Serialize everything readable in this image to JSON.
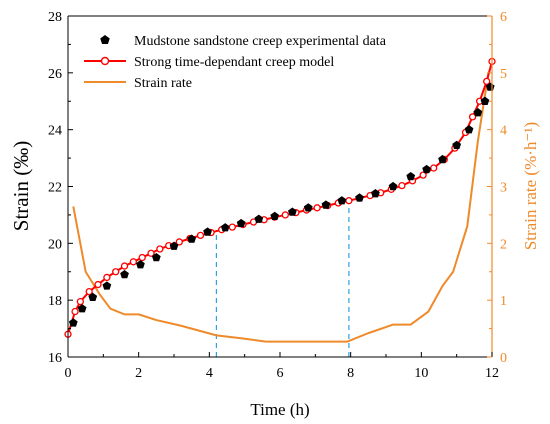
{
  "chart_data": {
    "type": "line",
    "xlabel": "Time (h)",
    "ylabel": "Strain (‰)",
    "y2label": "Strain rate (%·h⁻¹)",
    "xlim": [
      0,
      12
    ],
    "ylim": [
      16,
      28
    ],
    "y2lim": [
      0,
      6
    ],
    "xticks": [
      "0",
      "2",
      "4",
      "6",
      "8",
      "10",
      "12"
    ],
    "yticks": [
      "16",
      "18",
      "20",
      "22",
      "24",
      "26",
      "28"
    ],
    "y2ticks": [
      "0",
      "1",
      "2",
      "3",
      "4",
      "5",
      "6"
    ],
    "legend_position": "top-left",
    "grid": false,
    "colors": {
      "experimental": "#000000",
      "model": "#ff0000",
      "rate": "#ee8a2a",
      "divider": "#2ea0e6"
    },
    "series": [
      {
        "name": "Mudstone sandstone creep experimental data",
        "axis": "left",
        "marker": "pentagon",
        "x": [
          0.15,
          0.4,
          0.7,
          1.1,
          1.6,
          2.05,
          2.5,
          3.0,
          3.5,
          3.95,
          4.45,
          4.9,
          5.4,
          5.85,
          6.35,
          6.8,
          7.3,
          7.75,
          8.25,
          8.7,
          9.2,
          9.7,
          10.15,
          10.6,
          11.0,
          11.35,
          11.6,
          11.8,
          11.95
        ],
        "y": [
          17.2,
          17.7,
          18.1,
          18.5,
          18.9,
          19.25,
          19.5,
          19.9,
          20.15,
          20.4,
          20.55,
          20.7,
          20.85,
          20.95,
          21.1,
          21.25,
          21.35,
          21.5,
          21.6,
          21.75,
          22.0,
          22.35,
          22.6,
          22.95,
          23.45,
          24.0,
          24.6,
          25.0,
          25.5
        ]
      },
      {
        "name": "Strong time-dependant creep model",
        "axis": "left",
        "marker": "circle",
        "x": [
          0.0,
          0.2,
          0.35,
          0.6,
          0.85,
          1.1,
          1.35,
          1.6,
          1.85,
          2.1,
          2.35,
          2.6,
          2.85,
          3.15,
          3.45,
          3.75,
          4.05,
          4.35,
          4.65,
          4.95,
          5.25,
          5.55,
          5.85,
          6.15,
          6.45,
          6.75,
          7.05,
          7.35,
          7.65,
          7.95,
          8.25,
          8.55,
          8.85,
          9.15,
          9.45,
          9.75,
          10.05,
          10.35,
          10.65,
          10.95,
          11.25,
          11.45,
          11.65,
          11.85,
          12.0
        ],
        "y": [
          16.8,
          17.6,
          17.95,
          18.3,
          18.55,
          18.8,
          19.0,
          19.2,
          19.35,
          19.5,
          19.65,
          19.8,
          19.92,
          20.05,
          20.17,
          20.28,
          20.38,
          20.48,
          20.57,
          20.66,
          20.75,
          20.83,
          20.92,
          21.0,
          21.08,
          21.17,
          21.25,
          21.33,
          21.42,
          21.5,
          21.59,
          21.68,
          21.78,
          21.9,
          22.03,
          22.2,
          22.4,
          22.65,
          22.95,
          23.35,
          23.9,
          24.45,
          25.0,
          25.7,
          26.4
        ]
      },
      {
        "name": "Strain rate",
        "axis": "right",
        "marker": "none",
        "x": [
          0.15,
          0.5,
          0.9,
          1.2,
          1.6,
          2.0,
          2.5,
          3.2,
          4.2,
          4.9,
          5.6,
          6.5,
          7.9,
          8.5,
          9.2,
          9.7,
          10.2,
          10.6,
          10.9,
          11.3,
          11.6,
          11.9
        ],
        "y": [
          2.65,
          1.5,
          1.1,
          0.85,
          0.75,
          0.75,
          0.65,
          0.55,
          0.38,
          0.33,
          0.27,
          0.27,
          0.27,
          0.42,
          0.57,
          0.57,
          0.8,
          1.25,
          1.5,
          2.3,
          3.8,
          5.0
        ]
      }
    ],
    "dividers_x": [
      4.2,
      7.95
    ]
  }
}
